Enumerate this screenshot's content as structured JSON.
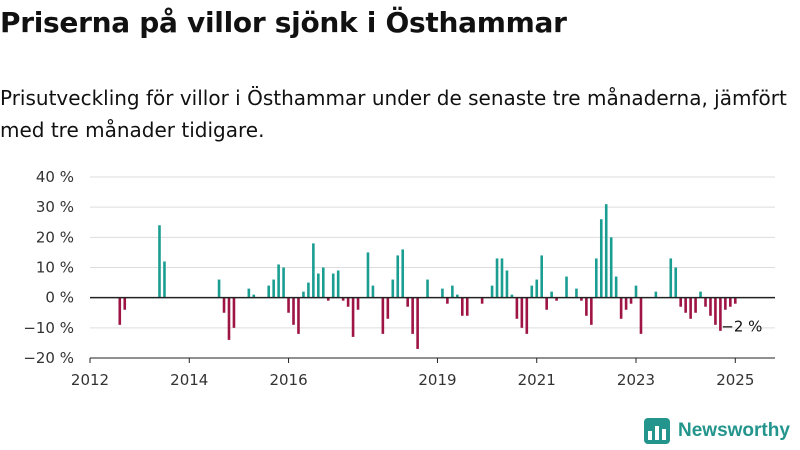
{
  "header": {
    "title": "Priserna på villor sjönk i Östhammar",
    "subtitle": "Prisutveckling för villor i Östhammar under de senaste tre månaderna, jämfört med tre månader tidigare."
  },
  "brand": {
    "name": "Newsworthy",
    "icon": "bar-chart-logo-icon"
  },
  "colors": {
    "positive": "#1b9e92",
    "negative": "#9e1444",
    "axis": "#222222",
    "grid": "#dddddd"
  },
  "chart_data": {
    "type": "bar",
    "ylim": [
      -20,
      40
    ],
    "xlim": [
      2012.0,
      2025.8
    ],
    "yticks": [
      {
        "value": 40,
        "label": "40 %"
      },
      {
        "value": 30,
        "label": "30 %"
      },
      {
        "value": 20,
        "label": "20 %"
      },
      {
        "value": 10,
        "label": "10 %"
      },
      {
        "value": 0,
        "label": "0 %"
      },
      {
        "value": -10,
        "label": "−10 %"
      },
      {
        "value": -20,
        "label": "−20 %"
      }
    ],
    "xticks": [
      {
        "value": 2012,
        "label": "2012"
      },
      {
        "value": 2014,
        "label": "2014"
      },
      {
        "value": 2016,
        "label": "2016"
      },
      {
        "value": 2019,
        "label": "2019"
      },
      {
        "value": 2021,
        "label": "2021"
      },
      {
        "value": 2023,
        "label": "2023"
      },
      {
        "value": 2025,
        "label": "2025"
      }
    ],
    "annotation": {
      "text": "−2 %",
      "x": 2025.0,
      "y": -2
    },
    "series": [
      {
        "points": [
          {
            "x": 2012.6,
            "y": -9
          },
          {
            "x": 2012.7,
            "y": -4
          },
          {
            "x": 2013.4,
            "y": 24
          },
          {
            "x": 2013.5,
            "y": 12
          },
          {
            "x": 2014.6,
            "y": 6
          },
          {
            "x": 2014.7,
            "y": -5
          },
          {
            "x": 2014.8,
            "y": -14
          },
          {
            "x": 2014.9,
            "y": -10
          },
          {
            "x": 2015.2,
            "y": 3
          },
          {
            "x": 2015.3,
            "y": 1
          },
          {
            "x": 2015.6,
            "y": 4
          },
          {
            "x": 2015.7,
            "y": 6
          },
          {
            "x": 2015.8,
            "y": 11
          },
          {
            "x": 2015.9,
            "y": 10
          },
          {
            "x": 2016.0,
            "y": -5
          },
          {
            "x": 2016.1,
            "y": -9
          },
          {
            "x": 2016.2,
            "y": -12
          },
          {
            "x": 2016.3,
            "y": 2
          },
          {
            "x": 2016.4,
            "y": 5
          },
          {
            "x": 2016.5,
            "y": 18
          },
          {
            "x": 2016.6,
            "y": 8
          },
          {
            "x": 2016.7,
            "y": 10
          },
          {
            "x": 2016.8,
            "y": -1
          },
          {
            "x": 2016.9,
            "y": 8
          },
          {
            "x": 2017.0,
            "y": 9
          },
          {
            "x": 2017.1,
            "y": -1
          },
          {
            "x": 2017.2,
            "y": -3
          },
          {
            "x": 2017.3,
            "y": -13
          },
          {
            "x": 2017.4,
            "y": -4
          },
          {
            "x": 2017.6,
            "y": 15
          },
          {
            "x": 2017.7,
            "y": 4
          },
          {
            "x": 2017.9,
            "y": -12
          },
          {
            "x": 2018.0,
            "y": -7
          },
          {
            "x": 2018.1,
            "y": 6
          },
          {
            "x": 2018.2,
            "y": 14
          },
          {
            "x": 2018.3,
            "y": 16
          },
          {
            "x": 2018.4,
            "y": -3
          },
          {
            "x": 2018.5,
            "y": -12
          },
          {
            "x": 2018.6,
            "y": -17
          },
          {
            "x": 2018.8,
            "y": 6
          },
          {
            "x": 2019.1,
            "y": 3
          },
          {
            "x": 2019.2,
            "y": -2
          },
          {
            "x": 2019.3,
            "y": 4
          },
          {
            "x": 2019.4,
            "y": 1
          },
          {
            "x": 2019.5,
            "y": -6
          },
          {
            "x": 2019.6,
            "y": -6
          },
          {
            "x": 2019.9,
            "y": -2
          },
          {
            "x": 2020.1,
            "y": 4
          },
          {
            "x": 2020.2,
            "y": 13
          },
          {
            "x": 2020.3,
            "y": 13
          },
          {
            "x": 2020.4,
            "y": 9
          },
          {
            "x": 2020.5,
            "y": 1
          },
          {
            "x": 2020.6,
            "y": -7
          },
          {
            "x": 2020.7,
            "y": -10
          },
          {
            "x": 2020.8,
            "y": -12
          },
          {
            "x": 2020.9,
            "y": 4
          },
          {
            "x": 2021.0,
            "y": 6
          },
          {
            "x": 2021.1,
            "y": 14
          },
          {
            "x": 2021.2,
            "y": -4
          },
          {
            "x": 2021.3,
            "y": 2
          },
          {
            "x": 2021.4,
            "y": -1
          },
          {
            "x": 2021.6,
            "y": 7
          },
          {
            "x": 2021.8,
            "y": 3
          },
          {
            "x": 2021.9,
            "y": -1
          },
          {
            "x": 2022.0,
            "y": -6
          },
          {
            "x": 2022.1,
            "y": -9
          },
          {
            "x": 2022.2,
            "y": 13
          },
          {
            "x": 2022.3,
            "y": 26
          },
          {
            "x": 2022.4,
            "y": 31
          },
          {
            "x": 2022.5,
            "y": 20
          },
          {
            "x": 2022.6,
            "y": 7
          },
          {
            "x": 2022.7,
            "y": -7
          },
          {
            "x": 2022.8,
            "y": -4
          },
          {
            "x": 2022.9,
            "y": -2
          },
          {
            "x": 2023.0,
            "y": 4
          },
          {
            "x": 2023.1,
            "y": -12
          },
          {
            "x": 2023.4,
            "y": 2
          },
          {
            "x": 2023.7,
            "y": 13
          },
          {
            "x": 2023.8,
            "y": 10
          },
          {
            "x": 2023.9,
            "y": -3
          },
          {
            "x": 2024.0,
            "y": -5
          },
          {
            "x": 2024.1,
            "y": -7
          },
          {
            "x": 2024.2,
            "y": -5
          },
          {
            "x": 2024.3,
            "y": 2
          },
          {
            "x": 2024.4,
            "y": -3
          },
          {
            "x": 2024.5,
            "y": -6
          },
          {
            "x": 2024.6,
            "y": -9
          },
          {
            "x": 2024.7,
            "y": -11
          },
          {
            "x": 2024.8,
            "y": -4
          },
          {
            "x": 2024.9,
            "y": -3
          },
          {
            "x": 2025.0,
            "y": -2
          }
        ]
      }
    ]
  }
}
